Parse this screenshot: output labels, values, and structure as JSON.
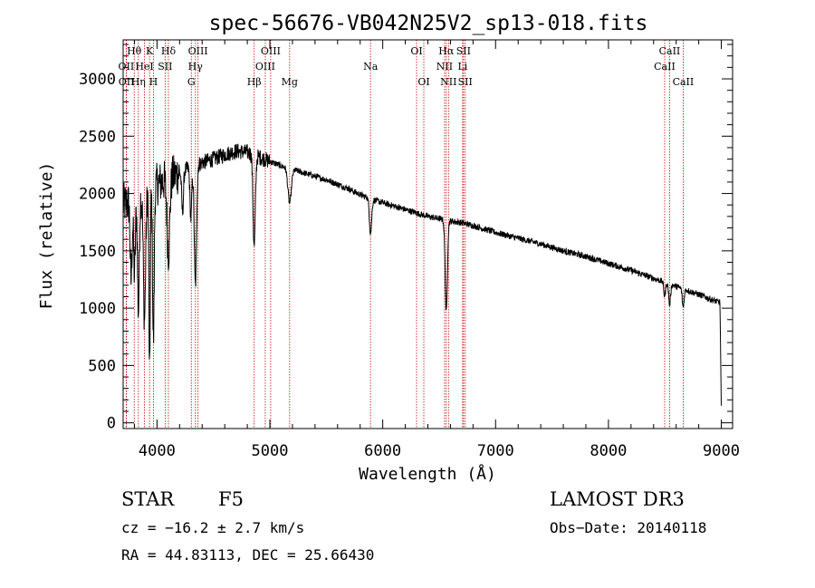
{
  "chart_data": {
    "type": "line",
    "title": "spec-56676-VB042N25V2_sp13-018.fits",
    "xlabel": "Wavelength (Å)",
    "ylabel": "Flux (relative)",
    "xlim": [
      3700,
      9100
    ],
    "ylim": [
      -50,
      3340
    ],
    "xticks": [
      4000,
      5000,
      6000,
      7000,
      8000,
      9000
    ],
    "xtick_labels": [
      "4000",
      "5000",
      "6000",
      "7000",
      "8000",
      "9000"
    ],
    "yticks": [
      0,
      500,
      1000,
      1500,
      2000,
      2500,
      3000
    ],
    "ytick_labels": [
      "0",
      "500",
      "1000",
      "1500",
      "2000",
      "2500",
      "3000"
    ],
    "x_minor_step": 200,
    "y_minor_step": 100,
    "continuum": [
      [
        3700,
        1900
      ],
      [
        3800,
        1950
      ],
      [
        3900,
        2020
      ],
      [
        4000,
        2080
      ],
      [
        4100,
        2130
      ],
      [
        4200,
        2180
      ],
      [
        4300,
        2230
      ],
      [
        4400,
        2270
      ],
      [
        4500,
        2300
      ],
      [
        4600,
        2340
      ],
      [
        4700,
        2370
      ],
      [
        4800,
        2360
      ],
      [
        4900,
        2320
      ],
      [
        5000,
        2280
      ],
      [
        5100,
        2240
      ],
      [
        5200,
        2210
      ],
      [
        5300,
        2180
      ],
      [
        5400,
        2150
      ],
      [
        5500,
        2120
      ],
      [
        5600,
        2080
      ],
      [
        5700,
        2040
      ],
      [
        5800,
        1990
      ],
      [
        5900,
        1950
      ],
      [
        6000,
        1920
      ],
      [
        6100,
        1890
      ],
      [
        6200,
        1860
      ],
      [
        6300,
        1830
      ],
      [
        6400,
        1800
      ],
      [
        6500,
        1780
      ],
      [
        6600,
        1760
      ],
      [
        6700,
        1745
      ],
      [
        6800,
        1720
      ],
      [
        6900,
        1690
      ],
      [
        7000,
        1660
      ],
      [
        7200,
        1610
      ],
      [
        7400,
        1560
      ],
      [
        7600,
        1500
      ],
      [
        7800,
        1450
      ],
      [
        8000,
        1390
      ],
      [
        8200,
        1330
      ],
      [
        8400,
        1260
      ],
      [
        8600,
        1190
      ],
      [
        8800,
        1120
      ],
      [
        8950,
        1060
      ],
      [
        9000,
        1050
      ]
    ],
    "absorption_features": [
      {
        "wave": 3770,
        "depth": 700,
        "width": 8
      },
      {
        "wave": 3800,
        "depth": 650,
        "width": 8
      },
      {
        "wave": 3835,
        "depth": 1000,
        "width": 8
      },
      {
        "wave": 3889,
        "depth": 1100,
        "width": 10
      },
      {
        "wave": 3934,
        "depth": 1650,
        "width": 6
      },
      {
        "wave": 3968,
        "depth": 1350,
        "width": 7
      },
      {
        "wave": 4101,
        "depth": 650,
        "width": 12
      },
      {
        "wave": 4340,
        "depth": 1050,
        "width": 10
      },
      {
        "wave": 4226,
        "depth": 350,
        "width": 8
      },
      {
        "wave": 4300,
        "depth": 450,
        "width": 8
      },
      {
        "wave": 4861,
        "depth": 800,
        "width": 10
      },
      {
        "wave": 5175,
        "depth": 300,
        "width": 15
      },
      {
        "wave": 5892,
        "depth": 300,
        "width": 10
      },
      {
        "wave": 6563,
        "depth": 800,
        "width": 10
      },
      {
        "wave": 8498,
        "depth": 120,
        "width": 8
      },
      {
        "wave": 8542,
        "depth": 180,
        "width": 8
      },
      {
        "wave": 8662,
        "depth": 160,
        "width": 8
      }
    ],
    "spectrum_end": {
      "wave": 9000,
      "drop_to": 150
    },
    "line_marker_color": "#cc0000",
    "line_markers": [
      {
        "label": "Hθ",
        "wave": 3798,
        "row": 0
      },
      {
        "label": "OII",
        "wave": 3727,
        "row": 1
      },
      {
        "label": "OII",
        "wave": 3729,
        "row": 2
      },
      {
        "label": "Hη",
        "wave": 3835,
        "row": 2
      },
      {
        "label": "K",
        "wave": 3934,
        "row": 0
      },
      {
        "label": "HeI",
        "wave": 3889,
        "row": 1
      },
      {
        "label": "H",
        "wave": 3968,
        "row": 2
      },
      {
        "label": "SII",
        "wave": 4072,
        "row": 1
      },
      {
        "label": "Hδ",
        "wave": 4101,
        "row": 0
      },
      {
        "label": "OIII",
        "wave": 4363,
        "row": 0
      },
      {
        "label": "Hγ",
        "wave": 4340,
        "row": 1
      },
      {
        "label": "G",
        "wave": 4304,
        "row": 2
      },
      {
        "label": "Hβ",
        "wave": 4861,
        "row": 2
      },
      {
        "label": "OIII",
        "wave": 5007,
        "row": 0
      },
      {
        "label": "OIII",
        "wave": 4959,
        "row": 1
      },
      {
        "label": "Mg",
        "wave": 5175,
        "row": 2
      },
      {
        "label": "Na",
        "wave": 5892,
        "row": 1
      },
      {
        "label": "OI",
        "wave": 6300,
        "row": 0
      },
      {
        "label": "OI",
        "wave": 6364,
        "row": 2
      },
      {
        "label": "Hα",
        "wave": 6563,
        "row": 0
      },
      {
        "label": "NII",
        "wave": 6548,
        "row": 1
      },
      {
        "label": "NII",
        "wave": 6583,
        "row": 2
      },
      {
        "label": "SII",
        "wave": 6716,
        "row": 0
      },
      {
        "label": "Li",
        "wave": 6708,
        "row": 1
      },
      {
        "label": "SII",
        "wave": 6731,
        "row": 2
      },
      {
        "label": "CaII",
        "wave": 8542,
        "row": 0
      },
      {
        "label": "CaII",
        "wave": 8498,
        "row": 1
      },
      {
        "label": "CaII",
        "wave": 8662,
        "row": 2
      }
    ]
  },
  "footer": {
    "object_class": "STAR",
    "subclass": "F5",
    "survey": "LAMOST DR3",
    "redshift": "cz = −16.2 ± 2.7 km/s",
    "obs_date": "Obs−Date: 20140118",
    "coords": "RA =  44.83113, DEC =  25.66430"
  }
}
